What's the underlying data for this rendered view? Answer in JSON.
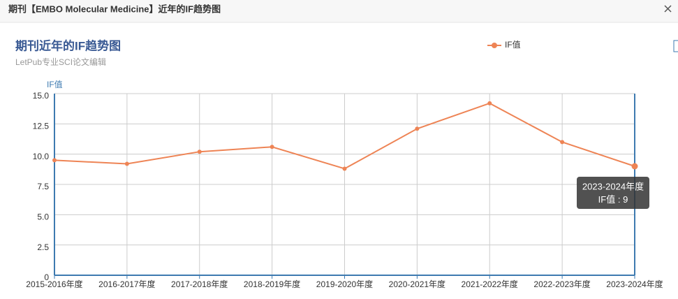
{
  "header": {
    "title": "期刊【EMBO Molecular Medicine】近年的IF趋势图"
  },
  "chart_data": {
    "type": "line",
    "title": "期刊近年的IF趋势图",
    "subtitle": "LetPub专业SCI论文编辑",
    "y_label": "IF值",
    "categories": [
      "2015-2016年度",
      "2016-2017年度",
      "2017-2018年度",
      "2018-2019年度",
      "2019-2020年度",
      "2020-2021年度",
      "2021-2022年度",
      "2022-2023年度",
      "2023-2024年度"
    ],
    "series": [
      {
        "name": "IF值",
        "color": "#ee8455",
        "values": [
          9.5,
          9.2,
          10.2,
          10.6,
          8.8,
          12.1,
          14.2,
          11.0,
          9
        ]
      }
    ],
    "ylim": [
      0,
      15
    ],
    "yticks": [
      0,
      2.5,
      {
        "value": 5,
        "label": "5.0"
      },
      7.5,
      {
        "value": 10,
        "label": "10.0"
      },
      12.5,
      {
        "value": 15,
        "label": "15.0"
      }
    ],
    "grid": true,
    "legend": "top",
    "tooltip_index": 8
  }
}
